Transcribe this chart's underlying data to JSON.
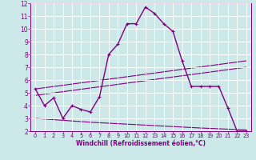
{
  "xlabel": "Windchill (Refroidissement éolien,°C)",
  "bg_color": "#cce8e8",
  "line_color": "#800080",
  "grid_color": "#ffffff",
  "xlim": [
    -0.5,
    23.5
  ],
  "ylim": [
    2,
    12
  ],
  "yticks": [
    2,
    3,
    4,
    5,
    6,
    7,
    8,
    9,
    10,
    11,
    12
  ],
  "xticks": [
    0,
    1,
    2,
    3,
    4,
    5,
    6,
    7,
    8,
    9,
    10,
    11,
    12,
    13,
    14,
    15,
    16,
    17,
    18,
    19,
    20,
    21,
    22,
    23
  ],
  "curve1_x": [
    0,
    1,
    2,
    3,
    4,
    5,
    6,
    7,
    8,
    9,
    10,
    11,
    12,
    13,
    14,
    15,
    16,
    17,
    18,
    19,
    20,
    21,
    22,
    23
  ],
  "curve1_y": [
    5.3,
    4.0,
    4.6,
    3.0,
    4.0,
    3.7,
    3.5,
    4.7,
    8.0,
    8.8,
    10.4,
    10.4,
    11.7,
    11.2,
    10.4,
    9.8,
    7.5,
    5.5,
    5.5,
    5.5,
    5.5,
    3.8,
    2.0,
    2.0
  ],
  "curve2_x": [
    0,
    23
  ],
  "curve2_y": [
    5.3,
    7.5
  ],
  "curve3_x": [
    0,
    23
  ],
  "curve3_y": [
    4.8,
    7.0
  ],
  "curve4_x": [
    0,
    3,
    6,
    10,
    14,
    18,
    23
  ],
  "curve4_y": [
    3.0,
    2.85,
    2.7,
    2.55,
    2.4,
    2.25,
    2.1
  ]
}
